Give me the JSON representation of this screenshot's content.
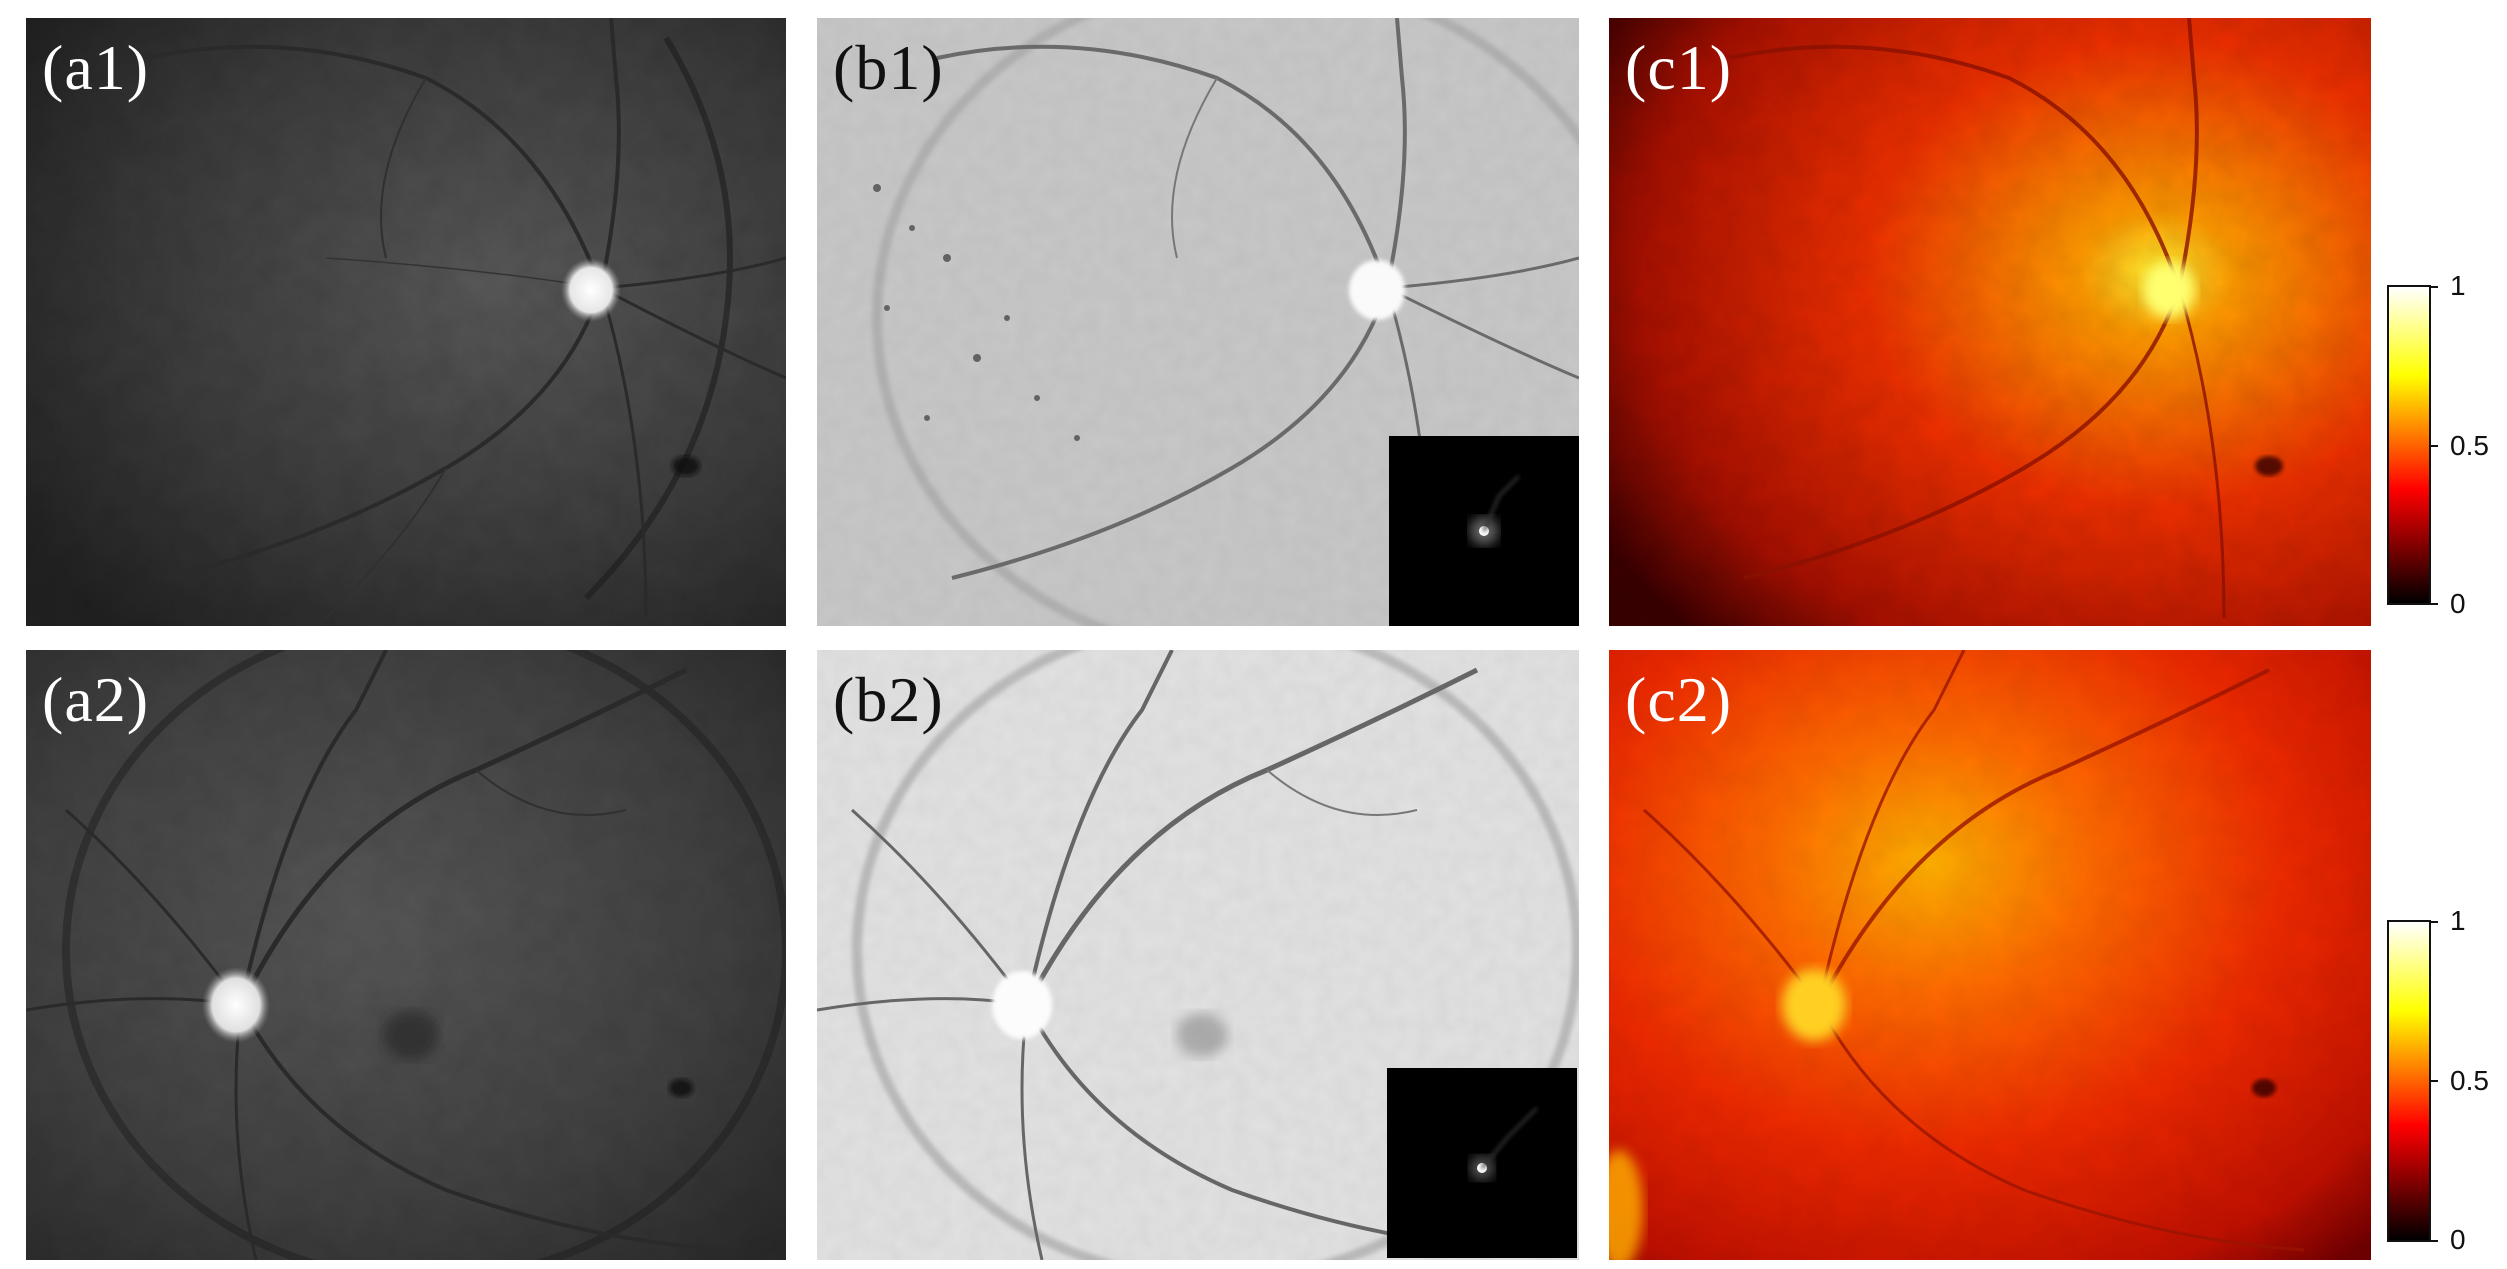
{
  "panels": {
    "a1": {
      "label": "(a1)"
    },
    "b1": {
      "label": "(b1)"
    },
    "c1": {
      "label": "(c1)"
    },
    "a2": {
      "label": "(a2)"
    },
    "b2": {
      "label": "(b2)"
    },
    "c2": {
      "label": "(c2)"
    }
  },
  "colorbar": {
    "ticks": [
      "1",
      "0.5",
      "0"
    ],
    "colormap": "hot",
    "colors": [
      "#000000",
      "#ff0000",
      "#ffff00",
      "#ffffff"
    ]
  }
}
